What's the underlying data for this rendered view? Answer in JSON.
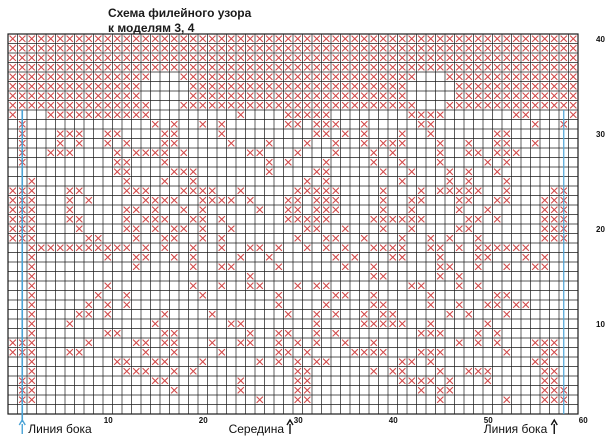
{
  "title": {
    "line1": "Схема филейного узора",
    "line2": "к моделям 3, 4"
  },
  "grid": {
    "columns": 60,
    "rows": 40,
    "line_color": "#1c1c1c",
    "cross_color": "#d24a4a",
    "pattern": [
      "XXXXXXXXXXXXXXXXXXXXXXXXXXXXXXXXXXXXXXXXXXXXXXXXXXXXXXXXXXXX",
      "XXXXXXXXXXXXXXXXXXXXXXXXXXXXXXXXXXXXXXXXXXXXXXXXXXXXXXXXXXXX",
      "XXXXXXXXXXXXXXXXXXXXXXXXXXXXXXXXXXXXXXXXXXXXXXXXXXXXXXXXXXXX",
      "XXXXXXXXXXXXXXXXXXXXXXXXXXXXXXXXXXXXXXXXXXXXXXXXXXXXXXXXXXXX",
      "XXXXXXXXXXXXXXX...XXXXXXXXXXXXXXXXXXXXXXXXX...XXXXXXXXXXXXXX",
      "XXXXXXXXXXXXXX.....XXXXXXXXXXXXXXXXXXXXXXX.....XXXXXXXXXXXXX",
      "XXXXXXXXXXXXXX.....XXXXXXXXXXXXXXXXXXXXXXX.....XXXXXXXXXXXXX",
      "XXXXXXXXXXXXXXX...XXXXXXXXXXXXXXXXXXXXXXXXX...XXXXXXXXXXXXXX",
      "X...XXXXXXXXXXX.........X....XXXXX........XXXX.......XX....X",
      ".X.............X.X..X.X......XX.XXX..X.....XX..........X..X.",
      ".X...XXX..XX....XX....X.........XX.X.X...X..X......XX.......",
      ".X...X.X..X.X...XX.....X...X...X..X..X.XXX...X..X..XX..X....",
      ".X..XXX....X.XXXX.X......XX...X...X...X.X....X..XX.XXX......",
      ".X.........XX...X..........X.X...X....X..X...X....X.X.......",
      "...........XX....XXX.......X....XX.....X..X...X.X..X........",
      "..X.........X...X..X...........X.X.......X....X.X...X.......",
      "XXX...XX....XXX...XXXX..X.....XXXXX....X...X.XXXXX..X....XX.",
      "XXX...X.X.....XXXX..XXXX.X...XX.XXX....X..XX...XX..XX...XXX.",
      "XXX...X.....XX.X..X.X.....X..XX.XXX....X..X....X..X.....XXX.",
      "XXX...XX....X.XXX..XX.X......XXXXX....XXXXXX....XX.X....XXX.",
      "XXX....X....XX.X.XX.X..X.......XX..X...X..X....XX.......XXX.",
      "XXX.....XX...X..XX..X.X.......X..XX..X...X..X.X..X......XXX.",
      "..XXXXXXXXXXX.X.X..X..X..XX.X..X.X.X..XXXX..XX.X.XXXXXX.....",
      "..X.......X..XX..X.X....X..X......X.X...XX...X...XX...X.X...",
      "..X..........X.....X..XX....X......X..X......XX..X..X..XX...",
      "..X......................X............XX.....X.X...........",
      "..X.......X........X..X..XX...X.XX........XX...X.X..........",
      "..X......X..X.......X.......X.....XX..X.....X......XX.......",
      "..X.....X.X.X...............X....X....XX....X..X..XX.XX.....",
      "..X....XX.X.....X....X.......X..X.X..X.XX.....X.X...X.......",
      "..X...X........X.......XX.......X....XXXXX..X.....X.........",
      "..X.......XX....XX.......X..XX..X.X........XXX...X.X........",
      "XXX.....X....XX.XX...X..XX..X.X.X..X..X........X.X.X...XXX..",
      "XXX...XX......X..X....X.....XX.X....XXXX...XXX......X...XX..",
      "..X........XX..XX...X.....X.X.X.XX.......XX.X..........XX...",
      "..X.........XXX..X.X..........XX......X.XX...X..XXX.....XX..",
      ".XX............XX.......X.....XX.........XXXX.X...X.....XX..",
      ".XX..............X......X.....XX...........X.XX.........XXX.",
      ".XX.......................X...XX.............X......X...XXX.",
      "............................................................"
    ]
  },
  "axis": {
    "right_ticks": [
      "40",
      "30",
      "20",
      "10"
    ],
    "bottom_ticks": [
      "10",
      "20",
      "30",
      "40",
      "50",
      "60"
    ]
  },
  "markers": {
    "left_label": "Линия бока",
    "center_label": "Середина",
    "right_label": "Линия бока",
    "side_line_color": "#4aa3d6"
  }
}
